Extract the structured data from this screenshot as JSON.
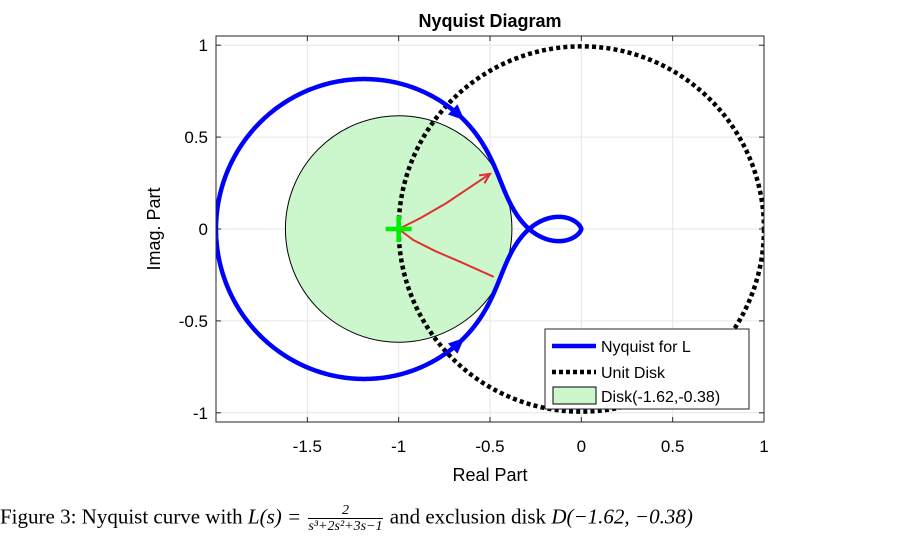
{
  "chart_data": {
    "type": "line",
    "title": "Nyquist Diagram",
    "xlabel": "Real Part",
    "ylabel": "Imag. Part",
    "xlim": [
      -2,
      1
    ],
    "ylim": [
      -1.05,
      1.05
    ],
    "xticks": [
      -1.5,
      -1,
      -0.5,
      0,
      0.5,
      1
    ],
    "xtick_labels": [
      "-1.5",
      "-1",
      "-0.5",
      "0",
      "0.5",
      "1"
    ],
    "yticks": [
      -1,
      -0.5,
      0,
      0.5,
      1
    ],
    "ytick_labels": [
      "-1",
      "-0.5",
      "0",
      "0.5",
      "1"
    ],
    "grid": true,
    "legend_position": "bottom-right",
    "transfer_function": {
      "numerator": [
        2
      ],
      "denominator": [
        1,
        2,
        3,
        -1
      ]
    },
    "series": [
      {
        "name": "Nyquist for L",
        "kind": "nyquist",
        "color": "#0000ff",
        "style": "solid"
      },
      {
        "name": "Unit Disk",
        "kind": "circle",
        "center": [
          0,
          0
        ],
        "radius": 1,
        "color": "#000000",
        "style": "dotted"
      },
      {
        "name": "Disk(-1.62,-0.38)",
        "kind": "disk",
        "center": [
          -1,
          0
        ],
        "radius": 0.62,
        "fill": "#ccf7cc",
        "edge": "#000000"
      }
    ],
    "critical_point": {
      "x": -1,
      "y": 0,
      "marker": "+",
      "color": "#00ee00"
    },
    "annotation_arrows": {
      "color": "#e03030",
      "arrows": [
        [
          [
            -1,
            0
          ],
          [
            -0.88,
            0.06
          ],
          [
            -0.74,
            0.14
          ],
          [
            -0.62,
            0.22
          ],
          [
            -0.5,
            0.3
          ]
        ],
        [
          [
            -1,
            0
          ],
          [
            -0.92,
            -0.06
          ],
          [
            -0.8,
            -0.12
          ],
          [
            -0.66,
            -0.18
          ],
          [
            -0.48,
            -0.26
          ]
        ]
      ]
    }
  },
  "caption": {
    "prefix": "Figure 3: Nyquist curve with ",
    "lhs": "L(s) = ",
    "frac_num": "2",
    "frac_den": "s³+2s²+3s−1",
    "suffix": " and exclusion disk ",
    "disk": "D(−1.62, −0.38)"
  }
}
